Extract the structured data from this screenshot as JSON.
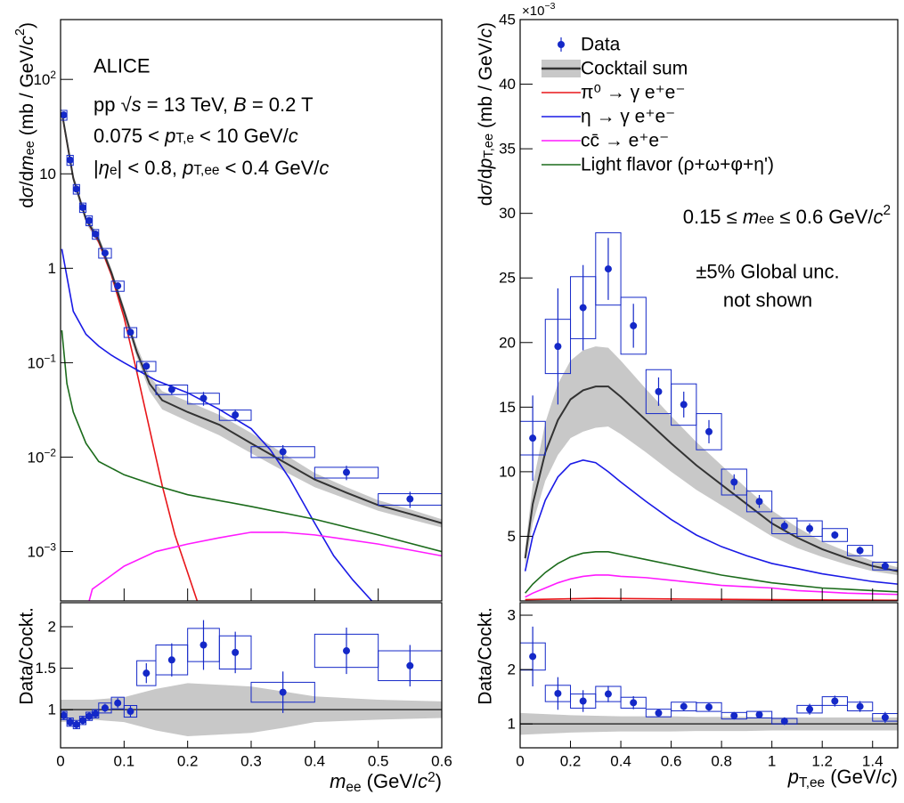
{
  "chart_data": [
    {
      "type": "spectrum",
      "log_y": true,
      "y_title": [
        "d",
        {
          "text": "σ",
          "style": "italic"
        },
        "/d",
        {
          "text": "m",
          "style": "italic"
        },
        {
          "text": "ee",
          "style": "sub"
        },
        " (mb / GeV/",
        {
          "text": "c",
          "style": "italic"
        },
        {
          "text": "2",
          "style": "sup"
        },
        ")"
      ],
      "annotations": [
        "ALICE",
        [
          "pp  √",
          {
            "text": "s",
            "style": "italic"
          },
          " = 13 TeV, ",
          {
            "text": "B",
            "style": "italic"
          },
          " = 0.2 T"
        ],
        [
          "0.075 < ",
          {
            "text": "p",
            "style": "italic"
          },
          {
            "text": "T,e",
            "style": "sub"
          },
          " < 10 GeV/",
          {
            "text": "c",
            "style": "italic"
          }
        ],
        [
          "|",
          {
            "text": "η",
            "style": "italic"
          },
          {
            "text": "e",
            "style": "sub"
          },
          "| < 0.8, ",
          {
            "text": "p",
            "style": "italic"
          },
          {
            "text": "T,ee",
            "style": "sub"
          },
          " < 0.4 GeV/",
          {
            "text": "c",
            "style": "italic"
          }
        ]
      ],
      "xlim": [
        0,
        0.6
      ],
      "xticks": [
        0,
        0.1,
        0.2,
        0.3,
        0.4,
        0.5,
        0.6
      ],
      "show_x_tick_labels": false,
      "ylim": [
        0.0003,
        430
      ],
      "yticks": [
        {
          "value": 0.001,
          "label": [
            "10",
            {
              "text": "−3",
              "style": "sup"
            }
          ]
        },
        {
          "value": 0.01,
          "label": [
            "10",
            {
              "text": "−2",
              "style": "sup"
            }
          ]
        },
        {
          "value": 0.1,
          "label": [
            "10",
            {
              "text": "−1",
              "style": "sup"
            }
          ]
        },
        1,
        10,
        {
          "value": 100,
          "label": [
            "10",
            {
              "text": "2",
              "style": "sup"
            }
          ]
        }
      ],
      "data": {
        "color": "#1428c8",
        "bins": [
          0,
          0.01,
          0.02,
          0.03,
          0.04,
          0.05,
          0.06,
          0.08,
          0.1,
          0.12,
          0.15,
          0.2,
          0.25,
          0.3,
          0.4,
          0.5,
          0.6
        ],
        "values": [
          42,
          14,
          6.9,
          4.4,
          3.2,
          2.3,
          1.45,
          0.65,
          0.21,
          0.092,
          0.052,
          0.042,
          0.028,
          0.0114,
          0.0069,
          0.0036
        ],
        "errors": [
          2,
          0.5,
          0.2,
          0.15,
          0.1,
          0.08,
          0.06,
          0.03,
          0.012,
          0.008,
          0.006,
          0.007,
          0.004,
          0.002,
          0.0012,
          0.0007
        ],
        "syst": [
          5,
          1.7,
          0.8,
          0.5,
          0.38,
          0.27,
          0.17,
          0.08,
          0.025,
          0.011,
          0.006,
          0.0055,
          0.0035,
          0.0015,
          0.0009,
          0.0005
        ]
      },
      "cocktail": {
        "color": "#333333",
        "band_color": "#c8c8c8",
        "x": [
          0.002,
          0.02,
          0.04,
          0.06,
          0.08,
          0.1,
          0.12,
          0.14,
          0.16,
          0.2,
          0.25,
          0.3,
          0.35,
          0.4,
          0.45,
          0.5,
          0.55,
          0.6
        ],
        "values": [
          45,
          9,
          3.3,
          2.0,
          0.9,
          0.35,
          0.13,
          0.06,
          0.04,
          0.03,
          0.022,
          0.014,
          0.009,
          0.0058,
          0.0042,
          0.0031,
          0.0025,
          0.002
        ],
        "band_lo": [
          41,
          8.1,
          3.0,
          1.8,
          0.81,
          0.31,
          0.115,
          0.05,
          0.032,
          0.024,
          0.017,
          0.011,
          0.0072,
          0.0048,
          0.0036,
          0.0027,
          0.0022,
          0.0018
        ],
        "band_hi": [
          49,
          9.9,
          3.6,
          2.2,
          0.99,
          0.39,
          0.15,
          0.072,
          0.05,
          0.039,
          0.028,
          0.018,
          0.011,
          0.0068,
          0.0048,
          0.0035,
          0.0028,
          0.0022
        ]
      },
      "components": [
        {
          "color": "#e8161a",
          "x": [
            0.002,
            0.02,
            0.04,
            0.06,
            0.08,
            0.1,
            0.12,
            0.14,
            0.16,
            0.18,
            0.2,
            0.215
          ],
          "values": [
            44,
            9,
            3.3,
            1.9,
            0.85,
            0.3,
            0.08,
            0.02,
            0.005,
            0.0015,
            0.0006,
            0.0003
          ]
        },
        {
          "color": "#1a1ae6",
          "x": [
            0.002,
            0.02,
            0.04,
            0.06,
            0.08,
            0.1,
            0.15,
            0.2,
            0.25,
            0.3,
            0.33,
            0.36,
            0.4,
            0.43,
            0.46,
            0.49
          ],
          "values": [
            1.6,
            0.35,
            0.2,
            0.15,
            0.12,
            0.1,
            0.065,
            0.048,
            0.032,
            0.02,
            0.012,
            0.006,
            0.002,
            0.0009,
            0.0005,
            0.0003
          ]
        },
        {
          "color": "#ff1aff",
          "x": [
            0.045,
            0.05,
            0.07,
            0.1,
            0.15,
            0.2,
            0.25,
            0.3,
            0.35,
            0.4,
            0.5,
            0.6
          ],
          "values": [
            0.0003,
            0.0004,
            0.0005,
            0.0007,
            0.001,
            0.0012,
            0.0014,
            0.0016,
            0.0016,
            0.0015,
            0.0012,
            0.0009
          ]
        },
        {
          "color": "#1b6b1b",
          "x": [
            0.002,
            0.01,
            0.02,
            0.04,
            0.06,
            0.1,
            0.15,
            0.2,
            0.3,
            0.4,
            0.5,
            0.6
          ],
          "values": [
            0.22,
            0.06,
            0.03,
            0.014,
            0.009,
            0.0065,
            0.005,
            0.004,
            0.003,
            0.0022,
            0.0015,
            0.001
          ]
        }
      ]
    },
    {
      "type": "ratio",
      "y_title": "Data/Cockt.",
      "x_title": [
        {
          "text": "m",
          "style": "italic"
        },
        {
          "text": "ee",
          "style": "sub"
        },
        " (GeV/",
        {
          "text": "c",
          "style": "italic"
        },
        {
          "text": "2",
          "style": "sup"
        },
        ")"
      ],
      "xlim": [
        0,
        0.6
      ],
      "xticks": [
        0,
        0.1,
        0.2,
        0.3,
        0.4,
        0.5,
        0.6
      ],
      "show_x_tick_labels": true,
      "ylim": [
        0.54,
        2.29
      ],
      "yticks": [
        1,
        1.5,
        2
      ],
      "reference_line": 1,
      "reference_color": "#333333",
      "data": {
        "color": "#1428c8",
        "bins": [
          0,
          0.01,
          0.02,
          0.03,
          0.04,
          0.05,
          0.06,
          0.08,
          0.1,
          0.12,
          0.15,
          0.2,
          0.25,
          0.3,
          0.4,
          0.5,
          0.6
        ],
        "values": [
          0.93,
          0.85,
          0.82,
          0.87,
          0.92,
          0.95,
          1.02,
          1.08,
          0.98,
          1.44,
          1.6,
          1.78,
          1.69,
          1.21,
          1.71,
          1.53
        ],
        "errors": [
          0.05,
          0.05,
          0.05,
          0.05,
          0.05,
          0.05,
          0.05,
          0.06,
          0.07,
          0.12,
          0.2,
          0.3,
          0.25,
          0.25,
          0.28,
          0.25
        ],
        "syst": [
          0.05,
          0.05,
          0.05,
          0.05,
          0.05,
          0.05,
          0.06,
          0.07,
          0.07,
          0.15,
          0.18,
          0.2,
          0.2,
          0.12,
          0.2,
          0.18
        ]
      },
      "band": {
        "color": "#c8c8c8",
        "x": [
          0,
          0.05,
          0.1,
          0.15,
          0.2,
          0.25,
          0.3,
          0.35,
          0.4,
          0.5,
          0.6
        ],
        "lo": [
          0.85,
          0.88,
          0.85,
          0.75,
          0.68,
          0.7,
          0.72,
          0.78,
          0.85,
          0.88,
          0.9
        ],
        "hi": [
          1.12,
          1.12,
          1.15,
          1.25,
          1.32,
          1.3,
          1.28,
          1.22,
          1.16,
          1.12,
          1.1
        ]
      }
    },
    {
      "type": "spectrum",
      "log_y": false,
      "y_title": [
        "d",
        {
          "text": "σ",
          "style": "italic"
        },
        "/d",
        {
          "text": "p",
          "style": "italic"
        },
        {
          "text": "T,ee",
          "style": "sub"
        },
        " (mb / GeV/",
        {
          "text": "c",
          "style": "italic"
        },
        ")"
      ],
      "y_multiplier": [
        "×10",
        {
          "text": "−3",
          "style": "sup"
        }
      ],
      "annotations": [
        [
          "0.15 ≤ ",
          {
            "text": "m",
            "style": "italic"
          },
          {
            "text": "ee",
            "style": "sub"
          },
          " ≤ 0.6 GeV/",
          {
            "text": "c",
            "style": "italic"
          },
          {
            "text": "2",
            "style": "sup"
          }
        ],
        "±5% Global unc.",
        "not shown"
      ],
      "xlim": [
        0,
        1.5
      ],
      "xticks": [
        0,
        0.2,
        0.4,
        0.6,
        0.8,
        1,
        1.2,
        1.4
      ],
      "show_x_tick_labels": false,
      "ylim": [
        0,
        45
      ],
      "yticks": [
        5,
        10,
        15,
        20,
        25,
        30,
        35,
        40,
        45
      ],
      "data": {
        "name": "Data",
        "color": "#1428c8",
        "bins": [
          0,
          0.1,
          0.2,
          0.3,
          0.4,
          0.5,
          0.6,
          0.7,
          0.8,
          0.9,
          1,
          1.1,
          1.2,
          1.3,
          1.4,
          1.5
        ],
        "values": [
          12.6,
          19.7,
          22.7,
          25.7,
          21.3,
          16.2,
          15.2,
          13.1,
          9.2,
          7.7,
          5.8,
          5.6,
          5.1,
          3.9,
          2.7
        ],
        "errors": [
          3.3,
          4.5,
          3.3,
          2.4,
          1.7,
          1.1,
          1.0,
          0.9,
          0.6,
          0.5,
          0.4,
          0.4,
          0.3,
          0.3,
          0.3
        ],
        "syst": [
          1.3,
          2.1,
          2.4,
          2.8,
          2.2,
          1.7,
          1.6,
          1.4,
          1.0,
          0.8,
          0.6,
          0.6,
          0.5,
          0.4,
          0.3
        ]
      },
      "cocktail": {
        "name": "Cocktail sum",
        "color": "#333333",
        "band_color": "#c8c8c8",
        "x": [
          0.02,
          0.05,
          0.1,
          0.15,
          0.2,
          0.25,
          0.3,
          0.35,
          0.4,
          0.5,
          0.6,
          0.7,
          0.8,
          0.9,
          1.0,
          1.1,
          1.2,
          1.3,
          1.4,
          1.5
        ],
        "values": [
          3.3,
          7.5,
          11.5,
          14.0,
          15.6,
          16.3,
          16.6,
          16.6,
          15.8,
          14.0,
          12.2,
          10.5,
          9.0,
          7.5,
          6.0,
          4.9,
          4.0,
          3.3,
          2.7,
          2.3
        ],
        "band_lo": [
          2.6,
          6.0,
          9.3,
          11.3,
          12.6,
          13.1,
          13.4,
          13.5,
          12.9,
          11.5,
          10.0,
          8.6,
          7.4,
          6.2,
          5.0,
          4.1,
          3.4,
          2.8,
          2.3,
          2.0
        ],
        "band_hi": [
          4.0,
          9.0,
          13.8,
          16.8,
          18.6,
          19.4,
          19.7,
          19.6,
          18.6,
          16.4,
          14.3,
          12.3,
          10.5,
          8.7,
          7.0,
          5.7,
          4.6,
          3.8,
          3.1,
          2.6
        ]
      },
      "components": [
        {
          "name": "π⁰ → γ e⁺e⁻",
          "color": "#e8161a",
          "x": [
            0.02,
            0.3,
            0.6,
            1.0,
            1.5
          ],
          "values": [
            0.1,
            0.2,
            0.15,
            0.1,
            0.05
          ]
        },
        {
          "name": "η → γ e⁺e⁻",
          "color": "#1a1ae6",
          "x": [
            0.02,
            0.05,
            0.1,
            0.15,
            0.2,
            0.25,
            0.3,
            0.35,
            0.4,
            0.5,
            0.6,
            0.7,
            0.8,
            0.9,
            1.0,
            1.1,
            1.2,
            1.3,
            1.4,
            1.5
          ],
          "values": [
            2.3,
            5.0,
            7.8,
            9.6,
            10.6,
            10.9,
            10.7,
            10.0,
            9.2,
            7.7,
            6.3,
            5.1,
            4.2,
            3.5,
            2.9,
            2.5,
            2.1,
            1.8,
            1.5,
            1.3
          ]
        },
        {
          "name": "cc̄ → e⁺e⁻",
          "color": "#ff1aff",
          "x": [
            0.02,
            0.05,
            0.1,
            0.15,
            0.2,
            0.25,
            0.3,
            0.35,
            0.4,
            0.5,
            0.6,
            0.7,
            0.8,
            0.9,
            1.0,
            1.1,
            1.2,
            1.3,
            1.4,
            1.5
          ],
          "values": [
            0.3,
            0.6,
            1.0,
            1.4,
            1.7,
            1.9,
            2.0,
            2.0,
            1.9,
            1.8,
            1.6,
            1.4,
            1.2,
            1.1,
            1.0,
            0.8,
            0.7,
            0.6,
            0.55,
            0.5
          ]
        },
        {
          "name": "Light flavor (ρ+ω+φ+η')",
          "color": "#1b6b1b",
          "x": [
            0.02,
            0.05,
            0.1,
            0.15,
            0.2,
            0.25,
            0.3,
            0.35,
            0.4,
            0.5,
            0.6,
            0.7,
            0.8,
            0.9,
            1.0,
            1.1,
            1.2,
            1.3,
            1.4,
            1.5
          ],
          "values": [
            0.6,
            1.3,
            2.2,
            2.9,
            3.4,
            3.7,
            3.8,
            3.8,
            3.6,
            3.2,
            2.8,
            2.4,
            2.0,
            1.7,
            1.4,
            1.2,
            1.0,
            0.9,
            0.8,
            0.7
          ]
        }
      ]
    },
    {
      "type": "ratio",
      "y_title": "Data/Cockt.",
      "x_title": [
        {
          "text": "p",
          "style": "italic"
        },
        {
          "text": "T,ee",
          "style": "sub"
        },
        " (GeV/",
        {
          "text": "c",
          "style": "italic"
        },
        ")"
      ],
      "xlim": [
        0,
        1.5
      ],
      "xticks": [
        0,
        0.2,
        0.4,
        0.6,
        0.8,
        1,
        1.2,
        1.4
      ],
      "show_x_tick_labels": true,
      "ylim": [
        0.56,
        3.23
      ],
      "yticks": [
        1,
        2,
        3
      ],
      "reference_line": 1,
      "reference_color": "#333333",
      "data": {
        "color": "#1428c8",
        "bins": [
          0,
          0.1,
          0.2,
          0.3,
          0.4,
          0.5,
          0.6,
          0.7,
          0.8,
          0.9,
          1,
          1.1,
          1.2,
          1.3,
          1.4,
          1.5
        ],
        "values": [
          2.24,
          1.56,
          1.42,
          1.55,
          1.39,
          1.2,
          1.32,
          1.31,
          1.15,
          1.17,
          1.05,
          1.27,
          1.42,
          1.32,
          1.12
        ],
        "errors": [
          0.55,
          0.3,
          0.2,
          0.15,
          0.12,
          0.07,
          0.07,
          0.07,
          0.07,
          0.07,
          0.07,
          0.1,
          0.1,
          0.1,
          0.1
        ],
        "syst": [
          0.25,
          0.15,
          0.13,
          0.14,
          0.1,
          0.07,
          0.08,
          0.08,
          0.06,
          0.06,
          0.05,
          0.07,
          0.08,
          0.08,
          0.07
        ]
      },
      "band": {
        "color": "#c8c8c8",
        "x": [
          0,
          0.1,
          0.2,
          0.3,
          0.4,
          0.5,
          0.6,
          0.7,
          0.8,
          0.9,
          1.0,
          1.1,
          1.2,
          1.3,
          1.4,
          1.5
        ],
        "lo": [
          0.8,
          0.82,
          0.84,
          0.85,
          0.86,
          0.86,
          0.86,
          0.87,
          0.87,
          0.87,
          0.88,
          0.88,
          0.88,
          0.88,
          0.88,
          0.88
        ],
        "hi": [
          1.2,
          1.18,
          1.16,
          1.15,
          1.14,
          1.14,
          1.14,
          1.13,
          1.13,
          1.13,
          1.12,
          1.12,
          1.12,
          1.12,
          1.12,
          1.12
        ]
      }
    }
  ]
}
